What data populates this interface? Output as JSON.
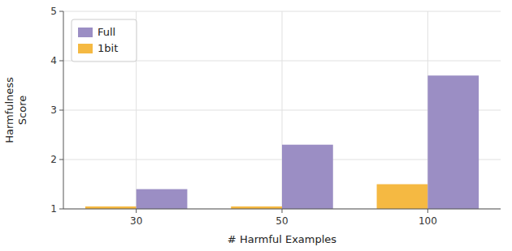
{
  "chart_data": {
    "type": "bar",
    "categories": [
      "30",
      "50",
      "100"
    ],
    "series": [
      {
        "name": "1bit",
        "color": "#f5b942",
        "values": [
          1.05,
          1.05,
          1.5
        ]
      },
      {
        "name": "Full",
        "color": "#9b8ec4",
        "values": [
          1.4,
          2.3,
          3.7
        ]
      }
    ],
    "x_label": "# Harmful Examples",
    "y_label": "Harmfulness\nScore",
    "ylim": [
      1,
      5
    ],
    "yticks": [
      1,
      2,
      3,
      4,
      5
    ],
    "grid": true,
    "legend": "upper-left"
  }
}
